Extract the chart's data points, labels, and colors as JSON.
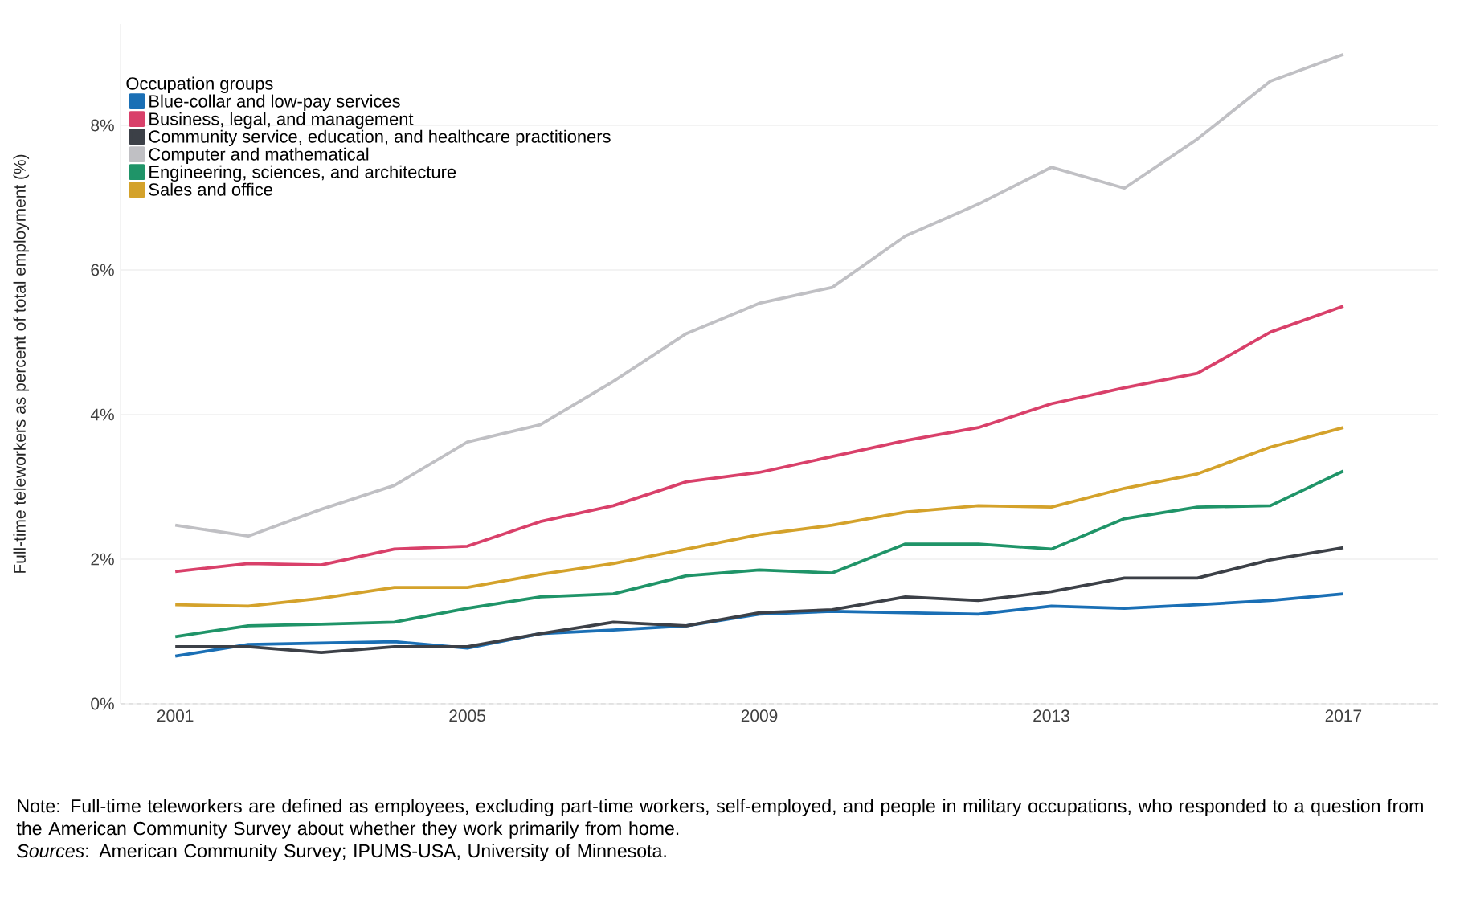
{
  "chart_data": {
    "type": "line",
    "ylabel": "Full-time teleworkers as percent of total employment (%)",
    "legend_title": "Occupation groups",
    "legend": "top left",
    "grid": "y",
    "line_style": "solid",
    "x": [
      2001,
      2002,
      2003,
      2004,
      2005,
      2006,
      2007,
      2008,
      2009,
      2010,
      2011,
      2012,
      2013,
      2014,
      2015,
      2016,
      2017
    ],
    "xlim": [
      2000.25,
      2018.3
    ],
    "xticks": [
      2001,
      2005,
      2009,
      2013,
      2017
    ],
    "ylim": [
      0,
      9.4
    ],
    "yticks": [
      {
        "value": 0,
        "label": "0%"
      },
      {
        "value": 2,
        "label": "2%"
      },
      {
        "value": 4,
        "label": "4%"
      },
      {
        "value": 6,
        "label": "6%"
      },
      {
        "value": 8,
        "label": "8%"
      }
    ],
    "series": [
      {
        "name": "Blue-collar and low-pay services",
        "color": "#1a6fb5",
        "values": [
          0.66,
          0.82,
          0.84,
          0.86,
          0.77,
          0.97,
          1.02,
          1.08,
          1.24,
          1.28,
          1.26,
          1.24,
          1.35,
          1.32,
          1.37,
          1.43,
          1.52
        ]
      },
      {
        "name": "Business, legal, and management",
        "color": "#d9406a",
        "values": [
          1.83,
          1.94,
          1.92,
          2.14,
          2.18,
          2.52,
          2.74,
          3.07,
          3.2,
          3.42,
          3.64,
          3.82,
          4.15,
          4.37,
          4.57,
          5.14,
          5.5
        ]
      },
      {
        "name": "Community service, education, and healthcare practitioners",
        "color": "#3c4047",
        "values": [
          0.79,
          0.79,
          0.71,
          0.79,
          0.79,
          0.97,
          1.13,
          1.08,
          1.26,
          1.3,
          1.48,
          1.43,
          1.55,
          1.74,
          1.74,
          1.99,
          2.16
        ]
      },
      {
        "name": "Computer and mathematical",
        "color": "#c0c0c4",
        "values": [
          2.47,
          2.32,
          2.69,
          3.02,
          3.62,
          3.86,
          4.46,
          5.12,
          5.54,
          5.76,
          6.47,
          6.91,
          7.42,
          7.13,
          7.81,
          8.61,
          8.98
        ]
      },
      {
        "name": "Engineering, sciences, and architecture",
        "color": "#1f9468",
        "values": [
          0.93,
          1.08,
          1.1,
          1.13,
          1.32,
          1.48,
          1.52,
          1.77,
          1.85,
          1.81,
          2.21,
          2.21,
          2.14,
          2.56,
          2.72,
          2.74,
          3.22
        ]
      },
      {
        "name": "Sales and office",
        "color": "#d4a22b",
        "values": [
          1.37,
          1.35,
          1.46,
          1.61,
          1.61,
          1.79,
          1.94,
          2.14,
          2.34,
          2.47,
          2.65,
          2.74,
          2.72,
          2.98,
          3.18,
          3.55,
          3.82
        ]
      }
    ],
    "annotations": [
      "Note: Full-time teleworkers are defined as employees, excluding part-time workers, self-employed, and people in military occupations, who responded to a question from the American Community Survey about whether they work primarily from home.",
      "*Sources*: American Community Survey; IPUMS-USA, University of Minnesota."
    ]
  }
}
